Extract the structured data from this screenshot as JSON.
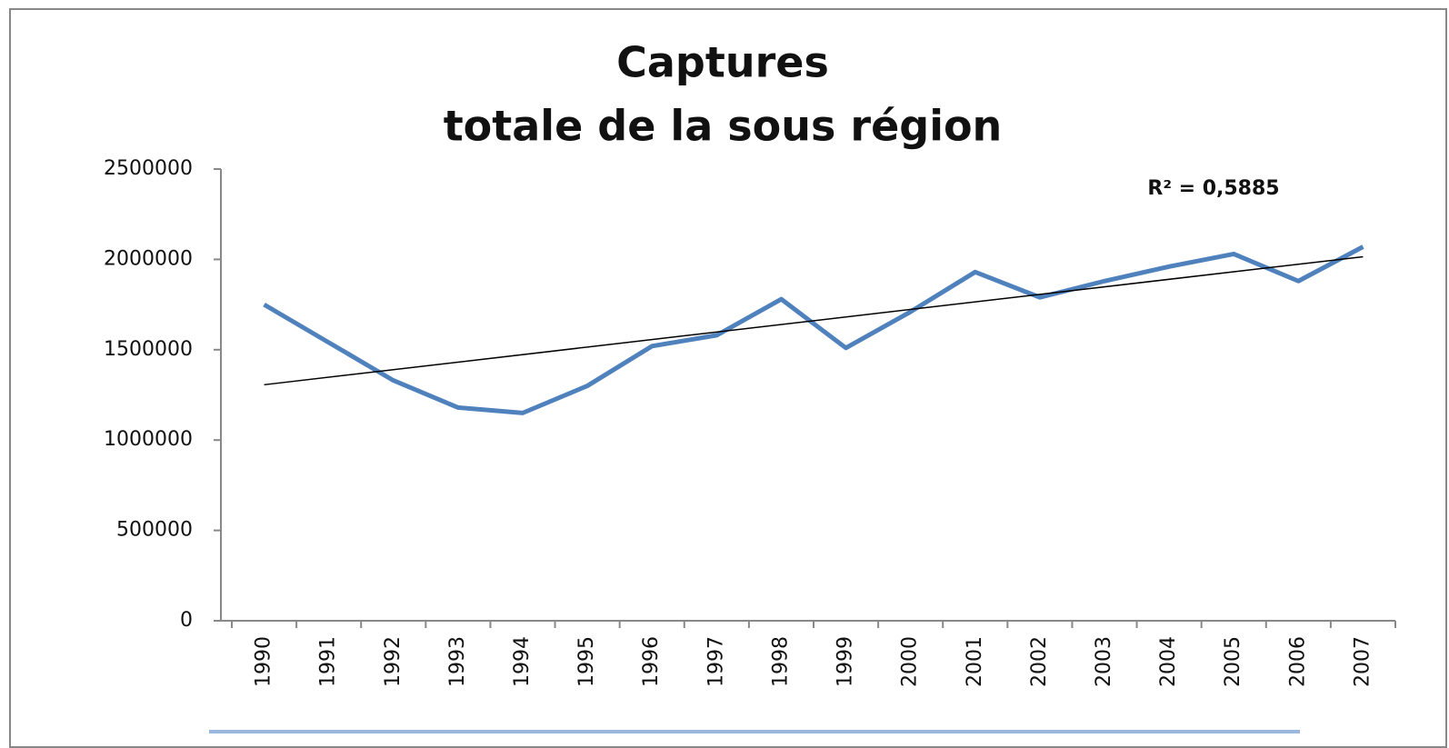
{
  "chart_data": {
    "type": "line",
    "title": [
      "Captures",
      "totale de la sous région"
    ],
    "annotation": "R² = 0,5885",
    "categories": [
      "1990",
      "1991",
      "1992",
      "1993",
      "1994",
      "1995",
      "1996",
      "1997",
      "1998",
      "1999",
      "2000",
      "2001",
      "2002",
      "2003",
      "2004",
      "2005",
      "2006",
      "2007"
    ],
    "series": [
      {
        "color": "#4f81bd",
        "values": [
          1750000,
          1540000,
          1330000,
          1180000,
          1150000,
          1300000,
          1520000,
          1580000,
          1780000,
          1510000,
          1710000,
          1930000,
          1790000,
          1880000,
          1960000,
          2030000,
          1880000,
          2070000
        ]
      }
    ],
    "trendline": true,
    "ylim": [
      0,
      2500000
    ],
    "yticks": [
      0,
      500000,
      1000000,
      1500000,
      2000000,
      2500000
    ]
  }
}
